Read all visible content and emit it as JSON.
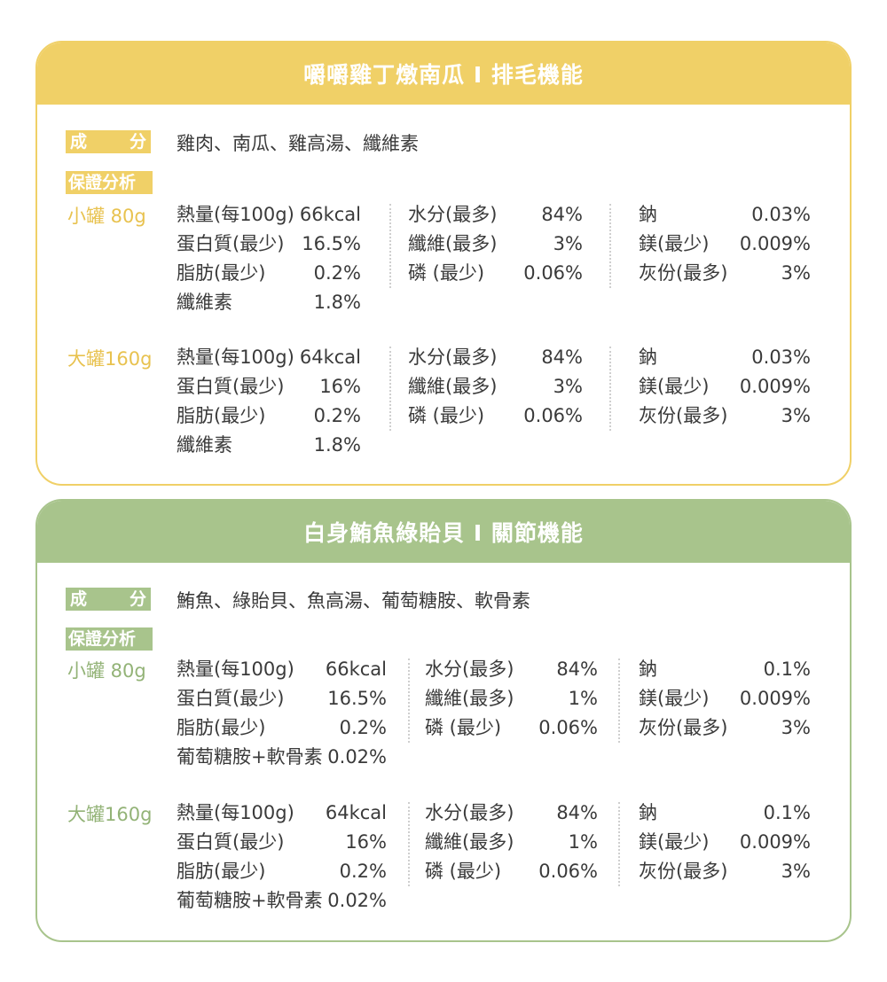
{
  "sections": [
    {
      "title": "嚼嚼雞丁燉南瓜 I 排毛機能",
      "ingredients_label": [
        "成",
        "分"
      ],
      "ingredients": "雞肉、南瓜、雞高湯、纖維素",
      "analysis_label": "保證分析",
      "colors": {
        "accent": "#f0d067"
      },
      "groups": [
        {
          "size": "小罐 80g",
          "col1": [
            {
              "label": "熱量(每100g)",
              "value": "66kcal"
            },
            {
              "label": "蛋白質(最少)",
              "value": "16.5%"
            },
            {
              "label": "脂肪(最少)",
              "value": "0.2%"
            },
            {
              "label": "纖維素",
              "value": "1.8%"
            }
          ],
          "col2": [
            {
              "label": "水分(最多)",
              "value": "84%"
            },
            {
              "label": "纖維(最多)",
              "value": "3%"
            },
            {
              "label": "磷 (最少)",
              "value": "0.06%"
            }
          ],
          "col3": [
            {
              "label": "鈉",
              "value": "0.03%"
            },
            {
              "label": "鎂(最少)",
              "value": "0.009%"
            },
            {
              "label": "灰份(最多)",
              "value": "3%"
            }
          ]
        },
        {
          "size": "大罐160g",
          "col1": [
            {
              "label": "熱量(每100g)",
              "value": "64kcal"
            },
            {
              "label": "蛋白質(最少)",
              "value": "16%"
            },
            {
              "label": "脂肪(最少)",
              "value": "0.2%"
            },
            {
              "label": "纖維素",
              "value": "1.8%"
            }
          ],
          "col2": [
            {
              "label": "水分(最多)",
              "value": "84%"
            },
            {
              "label": "纖維(最多)",
              "value": "3%"
            },
            {
              "label": "磷 (最少)",
              "value": "0.06%"
            }
          ],
          "col3": [
            {
              "label": "鈉",
              "value": "0.03%"
            },
            {
              "label": "鎂(最少)",
              "value": "0.009%"
            },
            {
              "label": "灰份(最多)",
              "value": "3%"
            }
          ]
        }
      ]
    },
    {
      "title": "白身鮪魚綠貽貝 I 關節機能",
      "ingredients_label": [
        "成",
        "分"
      ],
      "ingredients": "鮪魚、綠貽貝、魚高湯、葡萄糖胺、軟骨素",
      "analysis_label": "保證分析",
      "colors": {
        "accent": "#a8c48c"
      },
      "groups": [
        {
          "size": "小罐 80g",
          "col1": [
            {
              "label": "熱量(每100g)",
              "value": "66kcal"
            },
            {
              "label": "蛋白質(最少)",
              "value": "16.5%"
            },
            {
              "label": "脂肪(最少)",
              "value": "0.2%"
            },
            {
              "label": "葡萄糖胺+軟骨素",
              "value": "0.02%"
            }
          ],
          "col2": [
            {
              "label": "水分(最多)",
              "value": "84%"
            },
            {
              "label": "纖維(最多)",
              "value": "1%"
            },
            {
              "label": "磷 (最少)",
              "value": "0.06%"
            }
          ],
          "col3": [
            {
              "label": "鈉",
              "value": "0.1%"
            },
            {
              "label": "鎂(最少)",
              "value": "0.009%"
            },
            {
              "label": "灰份(最多)",
              "value": "3%"
            }
          ]
        },
        {
          "size": "大罐160g",
          "col1": [
            {
              "label": "熱量(每100g)",
              "value": "64kcal"
            },
            {
              "label": "蛋白質(最少)",
              "value": "16%"
            },
            {
              "label": "脂肪(最少)",
              "value": "0.2%"
            },
            {
              "label": "葡萄糖胺+軟骨素",
              "value": "0.02%"
            }
          ],
          "col2": [
            {
              "label": "水分(最多)",
              "value": "84%"
            },
            {
              "label": "纖維(最多)",
              "value": "1%"
            },
            {
              "label": "磷 (最少)",
              "value": "0.06%"
            }
          ],
          "col3": [
            {
              "label": "鈉",
              "value": "0.1%"
            },
            {
              "label": "鎂(最少)",
              "value": "0.009%"
            },
            {
              "label": "灰份(最多)",
              "value": "3%"
            }
          ]
        }
      ]
    }
  ]
}
